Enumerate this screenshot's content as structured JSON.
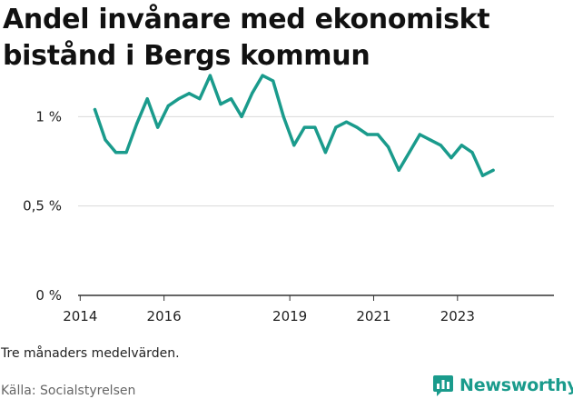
{
  "title": "Andel invånare med ekonomiskt bistånd i Bergs kommun",
  "note": "Tre månaders medelvärden.",
  "source": "Källa: Socialstyrelsen",
  "brand": "Newsworthy",
  "colors": {
    "line": "#1a9b8c",
    "brand": "#1a9b8c",
    "grid": "#d9d9d9",
    "axis": "#333333"
  },
  "chart_data": {
    "type": "line",
    "title": "Andel invånare med ekonomiskt bistånd i Bergs kommun",
    "xlabel": "",
    "ylabel": "",
    "x_ticks": [
      "2014",
      "2016",
      "2019",
      "2021",
      "2023"
    ],
    "x_tick_values": [
      2014,
      2016,
      2019,
      2021,
      2023
    ],
    "y_ticks": [
      "0 %",
      "0,5 %",
      "1 %"
    ],
    "y_tick_values": [
      0,
      0.5,
      1.0
    ],
    "ylim": [
      0,
      1.2
    ],
    "xlim": [
      2013.95,
      2025.3
    ],
    "grid": "horizontal",
    "series": [
      {
        "x": [
          2014.35,
          2014.6,
          2014.85,
          2015.1,
          2015.35,
          2015.6,
          2015.85,
          2016.1,
          2016.35,
          2016.6,
          2016.85,
          2017.1,
          2017.35,
          2017.6,
          2017.85,
          2018.1,
          2018.35,
          2018.6,
          2018.85,
          2019.1,
          2019.35,
          2019.6,
          2019.85,
          2020.1,
          2020.35,
          2020.6,
          2020.85,
          2021.1,
          2021.35,
          2021.6,
          2021.85,
          2022.1,
          2022.35,
          2022.6,
          2022.85,
          2023.1,
          2023.35,
          2023.6,
          2023.85
        ],
        "values": [
          1.04,
          0.87,
          0.8,
          0.8,
          0.96,
          1.1,
          0.94,
          1.06,
          1.1,
          1.13,
          1.1,
          1.23,
          1.07,
          1.1,
          1.0,
          1.13,
          1.23,
          1.2,
          1.0,
          0.84,
          0.94,
          0.94,
          0.8,
          0.94,
          0.97,
          0.94,
          0.9,
          0.9,
          0.83,
          0.7,
          0.8,
          0.9,
          0.87,
          0.84,
          0.77,
          0.84,
          0.8,
          0.67,
          0.7
        ]
      }
    ]
  }
}
